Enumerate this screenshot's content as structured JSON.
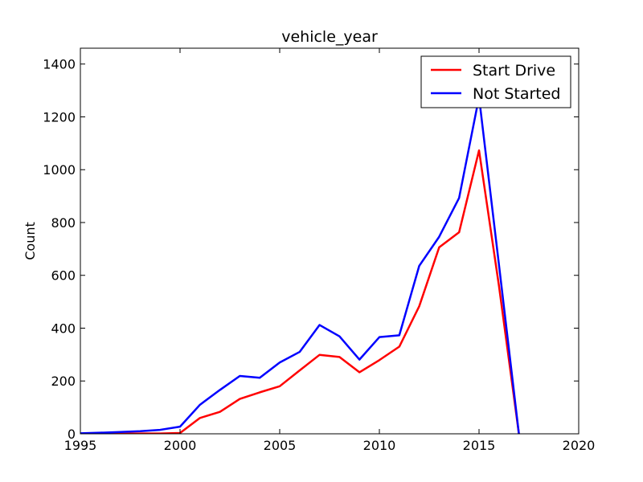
{
  "chart_data": {
    "type": "line",
    "title": "vehicle_year",
    "xlabel": "",
    "ylabel": "Count",
    "xlim": [
      1995,
      2020
    ],
    "ylim": [
      0,
      1460
    ],
    "xticks": [
      1995,
      2000,
      2005,
      2010,
      2015,
      2020
    ],
    "yticks": [
      0,
      200,
      400,
      600,
      800,
      1000,
      1200,
      1400
    ],
    "grid": false,
    "legend_position": "top-right",
    "series": [
      {
        "name": "Start Drive",
        "color": "#ff0000",
        "x": [
          1995,
          1996,
          1997,
          1998,
          1999,
          2000,
          2001,
          2002,
          2003,
          2004,
          2005,
          2006,
          2007,
          2008,
          2009,
          2010,
          2011,
          2012,
          2013,
          2014,
          2015,
          2016,
          2017
        ],
        "y": [
          0,
          0,
          0,
          1,
          1,
          3,
          60,
          83,
          132,
          157,
          180,
          240,
          299,
          291,
          233,
          279,
          330,
          483,
          706,
          763,
          1073,
          560,
          0
        ]
      },
      {
        "name": "Not Started",
        "color": "#0000ff",
        "x": [
          1995,
          1996,
          1997,
          1998,
          1999,
          2000,
          2001,
          2002,
          2003,
          2004,
          2005,
          2006,
          2007,
          2008,
          2009,
          2010,
          2011,
          2012,
          2013,
          2014,
          2015,
          2016,
          2017
        ],
        "y": [
          2,
          4,
          7,
          10,
          15,
          27,
          110,
          166,
          219,
          212,
          270,
          310,
          412,
          369,
          281,
          366,
          373,
          636,
          746,
          893,
          1275,
          640,
          0
        ]
      }
    ]
  }
}
